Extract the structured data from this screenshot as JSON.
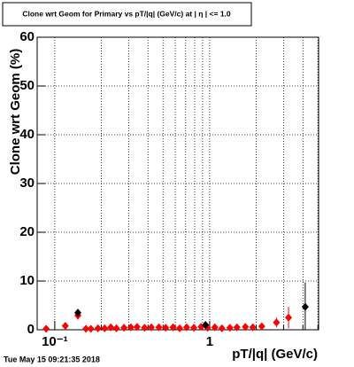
{
  "chart_data": {
    "type": "scatter",
    "title": "Clone wrt Geom for Primary vs pT/|q| (GeV/c) at | η | <= 1.0",
    "x_label": "pT/|q| (GeV/c)",
    "y_label": "Clone wrt Geom (%)",
    "timestamp": "Tue May 15 09:21:35 2018",
    "log_x": true,
    "grid": true,
    "xlim": [
      0.077,
      5.05
    ],
    "ylim": [
      0,
      60
    ],
    "xticks": [
      {
        "value": 0.1,
        "label": "10⁻¹"
      },
      1
    ],
    "x_minor_ticks": [
      0.2,
      0.3,
      0.4,
      0.5,
      0.6,
      0.7,
      0.8,
      0.9,
      2,
      3,
      4,
      5
    ],
    "yticks": [
      0,
      10,
      20,
      30,
      40,
      50,
      60
    ],
    "series": [
      {
        "color": "#ff0000",
        "x": [
          0.088,
          0.117,
          0.141,
          0.159,
          0.171,
          0.19,
          0.21,
          0.23,
          0.25,
          0.28,
          0.31,
          0.34,
          0.38,
          0.42,
          0.47,
          0.52,
          0.58,
          0.64,
          0.71,
          0.79,
          0.88,
          0.97,
          1.08,
          1.2,
          1.35,
          1.5,
          1.7,
          1.9,
          2.17,
          2.7,
          3.23
        ],
        "values": [
          0.2,
          0.8,
          2.9,
          0.2,
          0.2,
          0.3,
          0.3,
          0.5,
          0.3,
          0.4,
          0.5,
          0.6,
          0.4,
          0.5,
          0.5,
          0.4,
          0.5,
          0.3,
          0.5,
          0.4,
          0.6,
          0.4,
          0.5,
          0.3,
          0.4,
          0.5,
          0.6,
          0.5,
          0.7,
          1.5,
          2.5
        ],
        "errors": [
          0.3,
          0.4,
          0.8,
          0.2,
          0.2,
          0.2,
          0.2,
          0.3,
          0.2,
          0.2,
          0.3,
          0.3,
          0.2,
          0.3,
          0.3,
          0.2,
          0.3,
          0.2,
          0.3,
          0.2,
          0.3,
          0.2,
          0.3,
          0.2,
          0.3,
          0.3,
          0.4,
          0.4,
          0.5,
          1.0,
          2.2
        ]
      },
      {
        "color": "#000000",
        "x": [
          0.141,
          0.94,
          4.14
        ],
        "values": [
          3.5,
          1.0,
          4.7
        ],
        "errors": [
          0.6,
          0.5,
          5.0
        ]
      }
    ]
  }
}
